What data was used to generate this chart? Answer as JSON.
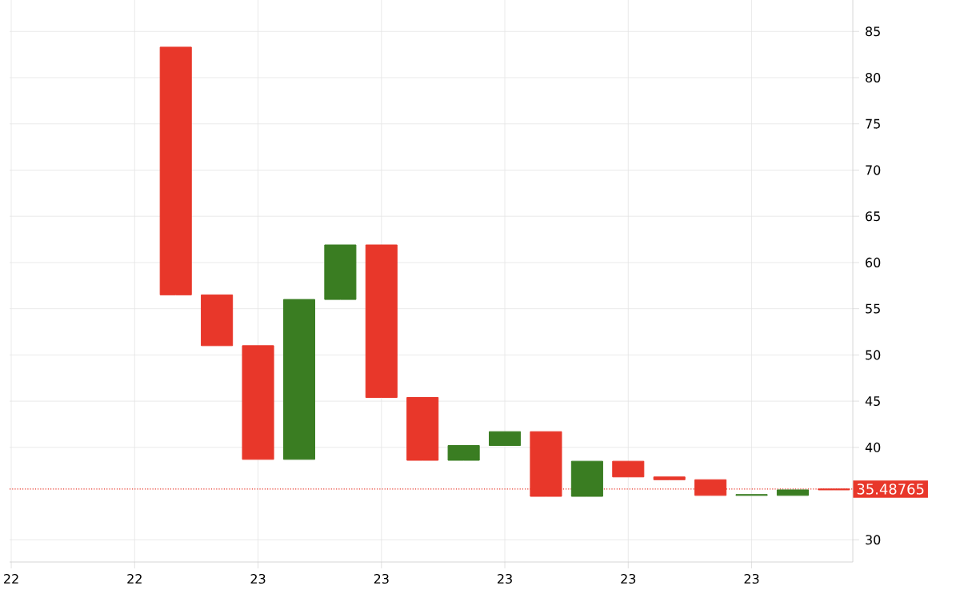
{
  "chart_data": {
    "type": "candlestick",
    "categories": [
      "22",
      null,
      null,
      "22",
      null,
      null,
      "23",
      null,
      null,
      "23",
      null,
      null,
      "23",
      null,
      null,
      "23",
      null,
      null,
      "23",
      null,
      null
    ],
    "ohlc": [
      null,
      null,
      null,
      null,
      [
        83.3,
        83.3,
        56.5,
        56.5
      ],
      [
        56.5,
        56.5,
        51.0,
        51.0
      ],
      [
        51.0,
        51.0,
        38.7,
        38.7
      ],
      [
        38.7,
        56.0,
        38.7,
        56.0
      ],
      [
        56.0,
        61.9,
        56.0,
        61.9
      ],
      [
        61.9,
        61.9,
        45.4,
        45.4
      ],
      [
        45.4,
        45.4,
        38.6,
        38.6
      ],
      [
        38.6,
        40.2,
        38.6,
        40.2
      ],
      [
        40.2,
        41.7,
        40.2,
        41.7
      ],
      [
        41.7,
        41.7,
        34.7,
        34.7
      ],
      [
        34.7,
        38.5,
        34.7,
        38.5
      ],
      [
        38.5,
        38.5,
        36.8,
        36.8
      ],
      [
        36.8,
        36.8,
        36.5,
        36.5
      ],
      [
        36.5,
        36.5,
        34.8,
        34.8
      ],
      [
        34.8,
        34.9,
        34.8,
        34.9
      ],
      [
        34.8,
        35.4,
        34.8,
        35.4
      ],
      [
        35.5,
        35.5,
        35.4,
        35.4
      ]
    ],
    "colors": [
      null,
      null,
      null,
      null,
      "#e8372a",
      "#e8372a",
      "#e8372a",
      "#3a7d22",
      "#3a7d22",
      "#e8372a",
      "#e8372a",
      "#3a7d22",
      "#3a7d22",
      "#e8372a",
      "#3a7d22",
      "#e8372a",
      "#e8372a",
      "#e8372a",
      "#3a7d22",
      "#3a7d22",
      "#e8372a"
    ],
    "ylim": [
      27.6,
      88.4
    ],
    "yticks": [
      30,
      40,
      45,
      50,
      55,
      60,
      65,
      70,
      75,
      80,
      85
    ],
    "grid": true,
    "ref_lines": [
      {
        "axis": "y",
        "value": 35.48765,
        "label": "35.48765",
        "color": "#e8372a",
        "line_style": "dotted"
      }
    ]
  }
}
